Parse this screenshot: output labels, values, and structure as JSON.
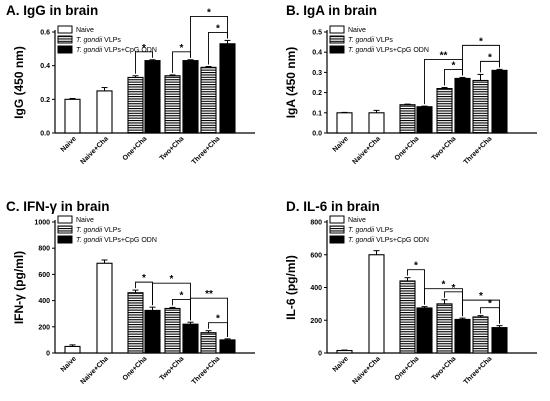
{
  "figure_title": "",
  "chart_data": [
    {
      "id": "A",
      "type": "bar",
      "title": "A. IgG in brain",
      "ylabel": "IgG (450 nm)",
      "ylim": [
        0,
        0.6
      ],
      "yticks": [
        0,
        0.2,
        0.4,
        0.6
      ],
      "ytick_labels": [
        "0.0",
        "0.2",
        "0.4",
        "0.6"
      ],
      "categories": [
        "Naive",
        "Naive+Cha",
        "One+Cha",
        "Two+Cha",
        "Three+Cha"
      ],
      "legend_position": "top-left",
      "series": [
        {
          "name": "Naive",
          "fill": "open",
          "values": [
            0.2,
            0.25,
            null,
            null,
            null
          ],
          "errors": [
            0.005,
            0.02,
            null,
            null,
            null
          ]
        },
        {
          "name": "T. gondii VLPs",
          "fill": "striped",
          "values": [
            null,
            null,
            0.33,
            0.34,
            0.39
          ],
          "errors": [
            null,
            null,
            0.01,
            0.005,
            0.005
          ]
        },
        {
          "name": "T. gondii VLPs+CpG ODN",
          "fill": "solid",
          "values": [
            null,
            null,
            0.43,
            0.43,
            0.53
          ],
          "errors": [
            null,
            null,
            0.005,
            0.005,
            0.02
          ]
        }
      ],
      "significance": [
        {
          "from": [
            2,
            1
          ],
          "to": [
            2,
            2
          ],
          "label": "*"
        },
        {
          "from": [
            3,
            1
          ],
          "to": [
            3,
            2
          ],
          "label": "*"
        },
        {
          "from": [
            4,
            1
          ],
          "to": [
            4,
            2
          ],
          "label": "*"
        },
        {
          "from": [
            3,
            2
          ],
          "to": [
            4,
            2
          ],
          "label": "*"
        }
      ]
    },
    {
      "id": "B",
      "type": "bar",
      "title": "B. IgA in brain",
      "ylabel": "IgA (450 nm)",
      "ylim": [
        0,
        0.5
      ],
      "yticks": [
        0,
        0.1,
        0.2,
        0.3,
        0.4,
        0.5
      ],
      "ytick_labels": [
        "0.0",
        "0.1",
        "0.2",
        "0.3",
        "0.4",
        "0.5"
      ],
      "categories": [
        "Naive",
        "Naive+Cha",
        "One+Cha",
        "Two+Cha",
        "Three+Cha"
      ],
      "legend_position": "top-left",
      "series": [
        {
          "name": "Naive",
          "fill": "open",
          "values": [
            0.1,
            0.1,
            null,
            null,
            null
          ],
          "errors": [
            0.002,
            0.012,
            null,
            null,
            null
          ]
        },
        {
          "name": "T. gondii VLPs",
          "fill": "striped",
          "values": [
            null,
            null,
            0.14,
            0.22,
            0.26
          ],
          "errors": [
            null,
            null,
            0.003,
            0.005,
            0.03
          ]
        },
        {
          "name": "T. gondii VLPs+CpG ODN",
          "fill": "solid",
          "values": [
            null,
            null,
            0.13,
            0.27,
            0.31
          ],
          "errors": [
            null,
            null,
            0.003,
            0.005,
            0.005
          ]
        }
      ],
      "significance": [
        {
          "from": [
            3,
            1
          ],
          "to": [
            3,
            2
          ],
          "label": "*"
        },
        {
          "from": [
            4,
            1
          ],
          "to": [
            4,
            2
          ],
          "label": "*"
        },
        {
          "from": [
            2,
            2
          ],
          "to": [
            3,
            2
          ],
          "label": "**"
        },
        {
          "from": [
            3,
            2
          ],
          "to": [
            4,
            2
          ],
          "label": "*"
        }
      ]
    },
    {
      "id": "C",
      "type": "bar",
      "title": "C. IFN-γ in brain",
      "ylabel": "IFN-γ  (pg/ml)",
      "ylim": [
        0,
        1000
      ],
      "yticks": [
        0,
        200,
        400,
        600,
        800,
        1000
      ],
      "ytick_labels": [
        "0",
        "200",
        "400",
        "600",
        "800",
        "1000"
      ],
      "categories": [
        "Naive",
        "Naive+Cha",
        "One+Cha",
        "Two+Cha",
        "Three+Cha"
      ],
      "legend_position": "top-left",
      "series": [
        {
          "name": "Naive",
          "fill": "open",
          "values": [
            50,
            685,
            null,
            null,
            null
          ],
          "errors": [
            12,
            25,
            null,
            null,
            null
          ]
        },
        {
          "name": "T. gondii VLPs",
          "fill": "striped",
          "values": [
            null,
            null,
            460,
            340,
            155
          ],
          "errors": [
            null,
            null,
            20,
            8,
            15
          ]
        },
        {
          "name": "T. gondii VLPs+CpG ODN",
          "fill": "solid",
          "values": [
            null,
            null,
            325,
            220,
            100
          ],
          "errors": [
            null,
            null,
            25,
            15,
            8
          ]
        }
      ],
      "significance": [
        {
          "from": [
            2,
            1
          ],
          "to": [
            2,
            2
          ],
          "label": "*"
        },
        {
          "from": [
            2,
            2
          ],
          "to": [
            3,
            2
          ],
          "label": "*"
        },
        {
          "from": [
            3,
            1
          ],
          "to": [
            3,
            2
          ],
          "label": "*"
        },
        {
          "from": [
            3,
            2
          ],
          "to": [
            4,
            2
          ],
          "label": "**"
        },
        {
          "from": [
            4,
            1
          ],
          "to": [
            4,
            2
          ],
          "label": "*"
        }
      ]
    },
    {
      "id": "D",
      "type": "bar",
      "title": "D. IL-6 in brain",
      "ylabel": "IL-6 (pg/ml)",
      "ylim": [
        0,
        800
      ],
      "yticks": [
        0,
        200,
        400,
        600,
        800
      ],
      "ytick_labels": [
        "0",
        "200",
        "400",
        "600",
        "800"
      ],
      "categories": [
        "Naive",
        "Naive+Cha",
        "One+Cha",
        "Two+Cha",
        "Three+Cha"
      ],
      "legend_position": "top-left",
      "series": [
        {
          "name": "Naive",
          "fill": "open",
          "values": [
            15,
            600,
            null,
            null,
            null
          ],
          "errors": [
            3,
            25,
            null,
            null,
            null
          ]
        },
        {
          "name": "T. gondii VLPs",
          "fill": "striped",
          "values": [
            null,
            null,
            440,
            300,
            220
          ],
          "errors": [
            null,
            null,
            20,
            25,
            8
          ]
        },
        {
          "name": "T. gondii VLPs+CpG ODN",
          "fill": "solid",
          "values": [
            null,
            null,
            275,
            205,
            155
          ],
          "errors": [
            null,
            null,
            8,
            8,
            12
          ]
        }
      ],
      "significance": [
        {
          "from": [
            2,
            1
          ],
          "to": [
            2,
            2
          ],
          "label": "*"
        },
        {
          "from": [
            3,
            1
          ],
          "to": [
            3,
            2
          ],
          "label": "*"
        },
        {
          "from": [
            2,
            2
          ],
          "to": [
            3,
            2
          ],
          "label": "*"
        },
        {
          "from": [
            4,
            1
          ],
          "to": [
            4,
            2
          ],
          "label": "*"
        },
        {
          "from": [
            3,
            2
          ],
          "to": [
            4,
            2
          ],
          "label": "*"
        }
      ]
    }
  ]
}
